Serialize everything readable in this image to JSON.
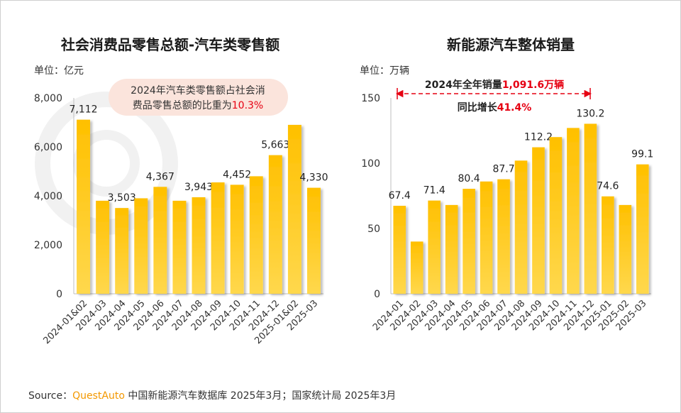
{
  "chart_data": [
    {
      "type": "bar",
      "title": "社会消费品零售总额-汽车类零售额",
      "unit_label": "单位：亿元",
      "categories": [
        "2024-01&02",
        "2024-03",
        "2024-04",
        "2024-05",
        "2024-06",
        "2024-07",
        "2024-08",
        "2024-09",
        "2024-10",
        "2024-11",
        "2024-12",
        "2025-01&02",
        "2025-03"
      ],
      "values": [
        7112,
        3800,
        3503,
        3900,
        4367,
        3800,
        3943,
        4550,
        4452,
        4800,
        5663,
        6900,
        4330
      ],
      "labels": [
        "7,112",
        "",
        "3,503",
        "",
        "4,367",
        "",
        "3,943",
        "",
        "4,452",
        "",
        "5,663",
        "",
        "4,330"
      ],
      "ylim": [
        0,
        8000
      ],
      "yticks": [
        0,
        2000,
        4000,
        6000,
        8000
      ],
      "ytick_labels": [
        "0",
        "2,000",
        "4,000",
        "6,000",
        "8,000"
      ],
      "bar_color": "#ffc000",
      "annotation": {
        "line1": "2024年汽车类零售额占社会消",
        "line2_prefix": "费品零售总额的比重为",
        "line2_highlight": "10.3%",
        "bg_color": "#fbe4dc",
        "highlight_color": "#e60012"
      }
    },
    {
      "type": "bar",
      "title": "新能源汽车整体销量",
      "unit_label": "单位：万辆",
      "categories": [
        "2024-01",
        "2024-02",
        "2024-03",
        "2024-04",
        "2024-05",
        "2024-06",
        "2024-07",
        "2024-08",
        "2024-09",
        "2024-10",
        "2024-11",
        "2024-12",
        "2025-01",
        "2025-02",
        "2025-03"
      ],
      "values": [
        67.4,
        40,
        71.4,
        68,
        80.4,
        86,
        87.7,
        102,
        112.2,
        120,
        127,
        130.2,
        74.6,
        68,
        99.1
      ],
      "labels": [
        "67.4",
        "",
        "71.4",
        "",
        "80.4",
        "",
        "87.7",
        "",
        "112.2",
        "",
        "",
        "130.2",
        "74.6",
        "",
        "99.1"
      ],
      "ylim": [
        0,
        150
      ],
      "yticks": [
        0,
        50,
        100,
        150
      ],
      "ytick_labels": [
        "0",
        "50",
        "100",
        "150"
      ],
      "bar_color": "#ffc000",
      "annotation": {
        "line1_prefix": "2024年全年销量",
        "line1_highlight": "1,091.6万辆",
        "line2_prefix": "同比增长",
        "line2_highlight": "41.4%",
        "arrow_color": "#e60012",
        "highlight_color": "#e60012"
      }
    }
  ],
  "source": {
    "prefix": "Source：",
    "brand": "QuestAuto",
    "text": " 中国新能源汽车数据库 2025年3月；国家统计局 2025年3月"
  }
}
